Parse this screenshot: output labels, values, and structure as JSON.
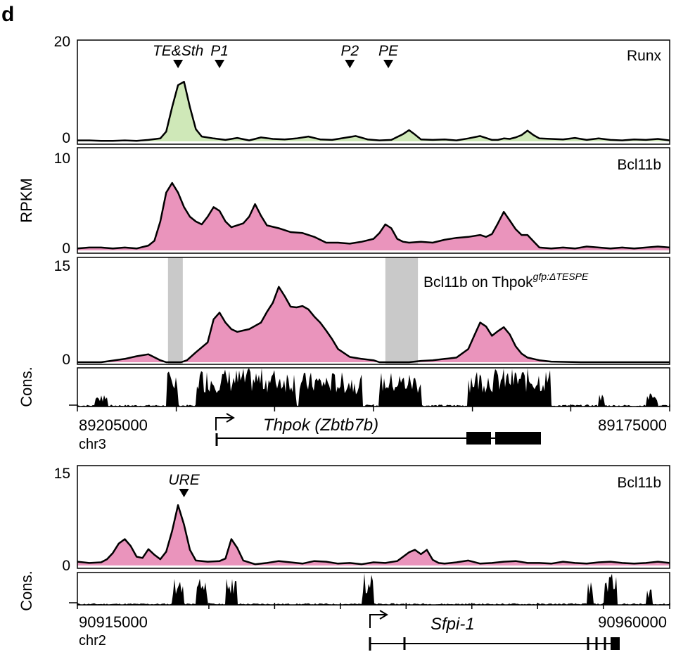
{
  "panel_letter": "d",
  "ylabel": "RPKM",
  "cons_label": "Cons.",
  "colors": {
    "green_fill": "#cfe8b8",
    "pink_fill": "#ea94bc",
    "gray_shade": "#c9c9c9",
    "line": "#000000"
  },
  "chart_data": [
    {
      "type": "area",
      "track_label": "Runx",
      "ylim": [
        0,
        20
      ],
      "yticks": [
        "20",
        "0"
      ],
      "fill": "#cfe8b8",
      "x": [
        0,
        2,
        4,
        6,
        8,
        10,
        12,
        14,
        15,
        16,
        17,
        18,
        19,
        20,
        21,
        23,
        25,
        27,
        29,
        31,
        33,
        35,
        37,
        39,
        41,
        43,
        45,
        47,
        49,
        51,
        53,
        54,
        55,
        56,
        57,
        58,
        60,
        62,
        64,
        66,
        68,
        70,
        71,
        72,
        73,
        74,
        75,
        76,
        77,
        78,
        80,
        82,
        84,
        86,
        88,
        90,
        92,
        94,
        96,
        98,
        100
      ],
      "y": [
        0.2,
        0.2,
        0.1,
        0.1,
        0.2,
        0.1,
        0.3,
        0.6,
        2,
        7,
        11.5,
        12.2,
        7,
        2.5,
        1,
        0.6,
        0.3,
        0.7,
        0.2,
        0.8,
        0.5,
        0.4,
        0.6,
        1,
        0.4,
        0.3,
        0.7,
        1.1,
        0.4,
        0.2,
        0.3,
        0.9,
        1.5,
        2.3,
        1.4,
        0.4,
        0.3,
        0.4,
        0.2,
        0.6,
        1.1,
        0.3,
        0.3,
        0.6,
        0.5,
        0.8,
        1.3,
        2.2,
        1.3,
        0.6,
        0.5,
        0.4,
        0.7,
        0.3,
        0.6,
        0.3,
        0.2,
        0.4,
        0.3,
        0.5,
        0.2
      ],
      "markers": [
        {
          "label": "TE&Sth",
          "x": 17
        },
        {
          "label": "P1",
          "x": 24
        },
        {
          "label": "P2",
          "x": 46
        },
        {
          "label": "PE",
          "x": 52.5
        }
      ]
    },
    {
      "type": "area",
      "track_label": "Bcl11b",
      "ylim": [
        0,
        10
      ],
      "yticks": [
        "10",
        "0"
      ],
      "fill": "#ea94bc",
      "x": [
        0,
        2,
        4,
        6,
        8,
        10,
        12,
        13,
        14,
        15,
        16,
        17,
        18,
        19,
        20,
        21,
        22,
        23,
        24,
        25,
        26,
        28,
        29,
        30,
        31,
        32,
        34,
        35,
        36,
        38,
        40,
        42,
        44,
        46,
        48,
        50,
        51,
        52,
        53,
        54,
        55,
        56,
        58,
        60,
        62,
        64,
        66,
        68,
        69,
        70,
        71,
        72,
        73,
        74,
        75,
        76,
        78,
        80,
        82,
        84,
        86,
        88,
        90,
        92,
        94,
        96,
        98,
        100
      ],
      "y": [
        0.2,
        0.3,
        0.3,
        0.2,
        0.3,
        0.2,
        0.5,
        1,
        3,
        6,
        7,
        6,
        4.5,
        3.5,
        3,
        2.7,
        3.5,
        4.5,
        4.1,
        3,
        2.4,
        2.8,
        3.5,
        4.8,
        3.6,
        2.6,
        2.3,
        2.1,
        1.9,
        1.8,
        1.4,
        0.8,
        0.8,
        0.7,
        0.9,
        1.2,
        1.8,
        2.7,
        2.3,
        1.2,
        0.9,
        0.8,
        0.9,
        0.8,
        1.1,
        1.3,
        1.4,
        1.6,
        1.4,
        1.7,
        2.8,
        4,
        3.1,
        2.2,
        1.6,
        1.6,
        0.3,
        0.2,
        0.3,
        0.2,
        0.4,
        0.3,
        0.2,
        0.3,
        0.2,
        0.3,
        0.4,
        0.3
      ]
    },
    {
      "type": "area",
      "track_label": "Bcl11b on Thpok",
      "track_label_sup": "gfp:ΔTESPE",
      "ylim": [
        0,
        15
      ],
      "yticks": [
        "15",
        "0"
      ],
      "fill": "#ea94bc",
      "x": [
        0,
        4,
        8,
        10,
        12,
        14,
        15,
        16,
        16.7,
        17.5,
        18.5,
        20,
        22,
        23,
        24,
        25,
        26,
        27,
        28,
        29,
        30,
        31,
        32,
        33,
        34,
        35,
        36,
        37,
        38,
        39,
        40,
        41,
        42,
        43,
        44,
        46,
        48,
        50,
        51,
        52,
        54,
        56,
        58,
        60,
        62,
        64,
        66,
        67,
        68,
        69,
        70,
        71,
        72,
        73,
        74,
        75,
        76,
        78,
        80,
        85,
        90,
        95,
        100
      ],
      "y": [
        0,
        0,
        0.5,
        0.9,
        1.2,
        0.3,
        0,
        0,
        0,
        0,
        0.3,
        1.5,
        3,
        6.5,
        7.5,
        6,
        5,
        4.6,
        4.8,
        5,
        5.5,
        6,
        7.6,
        9,
        11.4,
        10,
        8.4,
        8.3,
        8.5,
        8,
        6.9,
        6,
        4.8,
        3.5,
        2,
        0.8,
        0.5,
        0.3,
        0,
        0,
        0,
        0,
        0.2,
        0.3,
        0.5,
        0.7,
        2,
        4,
        6,
        5.4,
        4,
        4.7,
        5.3,
        4.2,
        2.4,
        1.3,
        0.7,
        0.3,
        0.1,
        0,
        0,
        0,
        0
      ],
      "shaded_regions": [
        [
          15.3,
          17.8
        ],
        [
          52,
          57.5
        ]
      ]
    },
    {
      "type": "area",
      "track_label": "Bcl11b",
      "ylim": [
        0,
        15
      ],
      "yticks": [
        "15",
        "0"
      ],
      "fill": "#ea94bc",
      "x": [
        0,
        2,
        4,
        5,
        6,
        7,
        8,
        9,
        10,
        11,
        12,
        13,
        14,
        15,
        16,
        17,
        18,
        19,
        20,
        22,
        24,
        25,
        26,
        27,
        28,
        30,
        32,
        34,
        36,
        38,
        40,
        42,
        44,
        46,
        48,
        50,
        52,
        54,
        56,
        57,
        58,
        59,
        60,
        61,
        62,
        64,
        66,
        68,
        70,
        72,
        74,
        76,
        78,
        80,
        82,
        84,
        86,
        88,
        90,
        92,
        94,
        96,
        98,
        100
      ],
      "y": [
        0.6,
        0.4,
        0.5,
        1,
        2,
        3.5,
        4.2,
        3.1,
        1.4,
        1.2,
        2.6,
        1.7,
        1,
        2.2,
        5.5,
        9.6,
        6.5,
        2.5,
        0.8,
        0.6,
        0.7,
        1.1,
        4.2,
        2.8,
        0.8,
        0.2,
        0.4,
        0.7,
        0.5,
        0.3,
        0.7,
        0.6,
        0.3,
        0.4,
        0.2,
        0.5,
        0.4,
        0.7,
        2.1,
        2.5,
        1.8,
        2.5,
        0.9,
        0.4,
        0.3,
        0.5,
        0.8,
        0.3,
        0.4,
        0.6,
        0.7,
        0.4,
        0.4,
        0.3,
        0.6,
        0.4,
        0.3,
        0.5,
        0.6,
        0.4,
        0.3,
        0.4,
        0.6,
        0.4
      ],
      "markers": [
        {
          "label": "URE",
          "x": 18
        }
      ]
    }
  ],
  "locus1": {
    "coord_left": "89205000",
    "coord_right": "89175000",
    "chromosome": "chr3",
    "gene_name": "Thpok (Zbtb7b)"
  },
  "locus2": {
    "coord_left": "90915000",
    "coord_right": "90960000",
    "chromosome": "chr2",
    "gene_name": "Sfpi-1"
  }
}
